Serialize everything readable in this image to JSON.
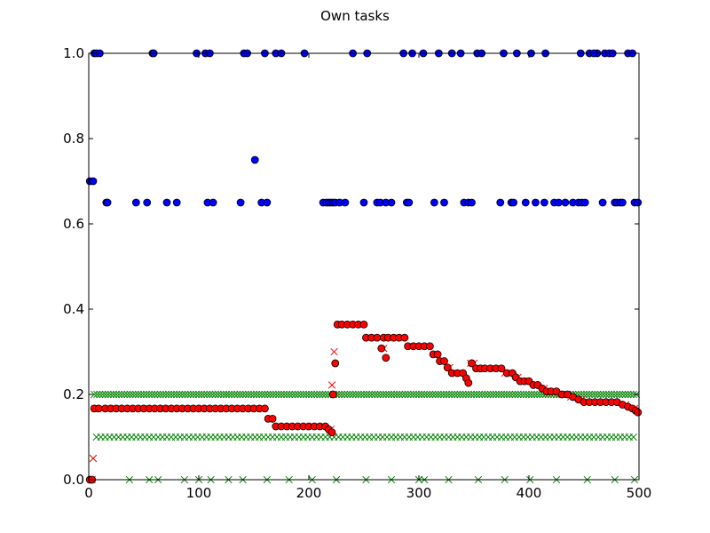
{
  "chart_data": {
    "type": "scatter",
    "title": "Own tasks",
    "xlabel": "",
    "ylabel": "",
    "xlim": [
      0,
      500
    ],
    "ylim": [
      0,
      1.0
    ],
    "x_ticks": [
      0,
      100,
      200,
      300,
      400,
      500
    ],
    "x_tick_labels": [
      "0",
      "100",
      "200",
      "300",
      "400",
      "500"
    ],
    "y_ticks": [
      0.0,
      0.2,
      0.4,
      0.6,
      0.8,
      1.0
    ],
    "y_tick_labels": [
      "0.0",
      "0.2",
      "0.4",
      "0.6",
      "0.8",
      "1.0"
    ],
    "grid": false,
    "legend": "none",
    "series": [
      {
        "marker": "circle",
        "color": "#0000ff",
        "points": [
          [
            1,
            0.7
          ],
          [
            4,
            0.7
          ],
          [
            5,
            1.0
          ],
          [
            7,
            1.0
          ],
          [
            10,
            1.0
          ],
          [
            16,
            0.65
          ],
          [
            17,
            0.65
          ],
          [
            43,
            0.65
          ],
          [
            53,
            0.65
          ],
          [
            58,
            1.0
          ],
          [
            59,
            1.0
          ],
          [
            71,
            0.65
          ],
          [
            80,
            0.65
          ],
          [
            98,
            1.0
          ],
          [
            106,
            1.0
          ],
          [
            108,
            0.65
          ],
          [
            110,
            1.0
          ],
          [
            113,
            0.65
          ],
          [
            138,
            0.65
          ],
          [
            141,
            1.0
          ],
          [
            144,
            1.0
          ],
          [
            151,
            0.75
          ],
          [
            157,
            0.65
          ],
          [
            160,
            1.0
          ],
          [
            162,
            0.65
          ],
          [
            170,
            1.0
          ],
          [
            175,
            1.0
          ],
          [
            196,
            1.0
          ],
          [
            213,
            0.65
          ],
          [
            216,
            0.65
          ],
          [
            218,
            0.65
          ],
          [
            220,
            0.65
          ],
          [
            222,
            0.65
          ],
          [
            224,
            0.65
          ],
          [
            228,
            0.65
          ],
          [
            233,
            0.65
          ],
          [
            240,
            1.0
          ],
          [
            250,
            0.65
          ],
          [
            253,
            1.0
          ],
          [
            262,
            0.65
          ],
          [
            265,
            0.65
          ],
          [
            270,
            0.65
          ],
          [
            275,
            0.65
          ],
          [
            286,
            1.0
          ],
          [
            289,
            0.65
          ],
          [
            291,
            0.65
          ],
          [
            294,
            1.0
          ],
          [
            304,
            1.0
          ],
          [
            314,
            0.65
          ],
          [
            318,
            1.0
          ],
          [
            323,
            0.65
          ],
          [
            330,
            1.0
          ],
          [
            338,
            1.0
          ],
          [
            341,
            0.65
          ],
          [
            345,
            0.65
          ],
          [
            348,
            0.65
          ],
          [
            353,
            1.0
          ],
          [
            357,
            1.0
          ],
          [
            374,
            0.65
          ],
          [
            377,
            1.0
          ],
          [
            384,
            0.65
          ],
          [
            386,
            0.65
          ],
          [
            389,
            1.0
          ],
          [
            397,
            0.65
          ],
          [
            402,
            1.0
          ],
          [
            406,
            0.65
          ],
          [
            414,
            0.65
          ],
          [
            415,
            1.0
          ],
          [
            423,
            0.65
          ],
          [
            427,
            0.65
          ],
          [
            433,
            0.65
          ],
          [
            440,
            0.65
          ],
          [
            445,
            0.65
          ],
          [
            448,
            0.65
          ],
          [
            451,
            0.65
          ],
          [
            455,
            1.0
          ],
          [
            462,
            1.0
          ],
          [
            467,
            0.65
          ],
          [
            469,
            1.0
          ],
          [
            473,
            1.0
          ],
          [
            476,
            1.0
          ],
          [
            478,
            0.65
          ],
          [
            480,
            0.65
          ],
          [
            483,
            0.65
          ],
          [
            485,
            0.65
          ],
          [
            490,
            1.0
          ],
          [
            494,
            1.0
          ],
          [
            496,
            0.65
          ],
          [
            499,
            0.65
          ],
          [
            447,
            1.0
          ],
          [
            459,
            1.0
          ]
        ]
      },
      {
        "marker": "circle",
        "color": "#ff0000",
        "points": [
          [
            1,
            0.0
          ],
          [
            3,
            0.0
          ],
          [
            5,
            0.167
          ],
          [
            9,
            0.167
          ],
          [
            15,
            0.167
          ],
          [
            20,
            0.167
          ],
          [
            25,
            0.167
          ],
          [
            30,
            0.167
          ],
          [
            35,
            0.167
          ],
          [
            40,
            0.167
          ],
          [
            45,
            0.167
          ],
          [
            50,
            0.167
          ],
          [
            55,
            0.167
          ],
          [
            60,
            0.167
          ],
          [
            65,
            0.167
          ],
          [
            70,
            0.167
          ],
          [
            75,
            0.167
          ],
          [
            80,
            0.167
          ],
          [
            85,
            0.167
          ],
          [
            90,
            0.167
          ],
          [
            95,
            0.167
          ],
          [
            100,
            0.167
          ],
          [
            105,
            0.167
          ],
          [
            110,
            0.167
          ],
          [
            115,
            0.167
          ],
          [
            120,
            0.167
          ],
          [
            125,
            0.167
          ],
          [
            130,
            0.167
          ],
          [
            135,
            0.167
          ],
          [
            140,
            0.167
          ],
          [
            145,
            0.167
          ],
          [
            150,
            0.167
          ],
          [
            155,
            0.167
          ],
          [
            160,
            0.167
          ],
          [
            163,
            0.143
          ],
          [
            167,
            0.143
          ],
          [
            170,
            0.125
          ],
          [
            175,
            0.125
          ],
          [
            180,
            0.125
          ],
          [
            185,
            0.125
          ],
          [
            190,
            0.125
          ],
          [
            195,
            0.125
          ],
          [
            200,
            0.125
          ],
          [
            205,
            0.125
          ],
          [
            210,
            0.125
          ],
          [
            215,
            0.125
          ],
          [
            218,
            0.118
          ],
          [
            221,
            0.111
          ],
          [
            222,
            0.2
          ],
          [
            224,
            0.273
          ],
          [
            226,
            0.364
          ],
          [
            230,
            0.364
          ],
          [
            235,
            0.364
          ],
          [
            240,
            0.364
          ],
          [
            245,
            0.364
          ],
          [
            250,
            0.364
          ],
          [
            252,
            0.333
          ],
          [
            257,
            0.333
          ],
          [
            262,
            0.333
          ],
          [
            266,
            0.308
          ],
          [
            268,
            0.333
          ],
          [
            270,
            0.286
          ],
          [
            272,
            0.333
          ],
          [
            277,
            0.333
          ],
          [
            282,
            0.333
          ],
          [
            287,
            0.333
          ],
          [
            290,
            0.313
          ],
          [
            295,
            0.313
          ],
          [
            300,
            0.313
          ],
          [
            305,
            0.313
          ],
          [
            310,
            0.313
          ],
          [
            313,
            0.294
          ],
          [
            317,
            0.294
          ],
          [
            319,
            0.278
          ],
          [
            323,
            0.278
          ],
          [
            326,
            0.263
          ],
          [
            330,
            0.25
          ],
          [
            335,
            0.25
          ],
          [
            340,
            0.25
          ],
          [
            343,
            0.238
          ],
          [
            345,
            0.227
          ],
          [
            348,
            0.273
          ],
          [
            352,
            0.261
          ],
          [
            356,
            0.261
          ],
          [
            360,
            0.261
          ],
          [
            365,
            0.261
          ],
          [
            370,
            0.261
          ],
          [
            375,
            0.261
          ],
          [
            380,
            0.25
          ],
          [
            385,
            0.25
          ],
          [
            388,
            0.24
          ],
          [
            392,
            0.231
          ],
          [
            396,
            0.231
          ],
          [
            400,
            0.231
          ],
          [
            404,
            0.222
          ],
          [
            408,
            0.222
          ],
          [
            412,
            0.214
          ],
          [
            416,
            0.207
          ],
          [
            420,
            0.207
          ],
          [
            425,
            0.207
          ],
          [
            430,
            0.2
          ],
          [
            435,
            0.2
          ],
          [
            440,
            0.194
          ],
          [
            445,
            0.188
          ],
          [
            450,
            0.182
          ],
          [
            455,
            0.182
          ],
          [
            460,
            0.182
          ],
          [
            465,
            0.182
          ],
          [
            470,
            0.182
          ],
          [
            475,
            0.182
          ],
          [
            480,
            0.182
          ],
          [
            485,
            0.176
          ],
          [
            490,
            0.171
          ],
          [
            494,
            0.167
          ],
          [
            497,
            0.162
          ],
          [
            499,
            0.158
          ]
        ]
      },
      {
        "marker": "x",
        "color": "#ff0000",
        "points": [
          [
            4,
            0.05
          ],
          [
            6,
            0.167
          ],
          [
            12,
            0.167
          ],
          [
            22,
            0.167
          ],
          [
            32,
            0.167
          ],
          [
            42,
            0.167
          ],
          [
            52,
            0.167
          ],
          [
            62,
            0.167
          ],
          [
            72,
            0.167
          ],
          [
            82,
            0.167
          ],
          [
            92,
            0.167
          ],
          [
            102,
            0.167
          ],
          [
            112,
            0.167
          ],
          [
            122,
            0.167
          ],
          [
            132,
            0.167
          ],
          [
            142,
            0.167
          ],
          [
            152,
            0.167
          ],
          [
            165,
            0.143
          ],
          [
            172,
            0.125
          ],
          [
            182,
            0.125
          ],
          [
            192,
            0.125
          ],
          [
            202,
            0.125
          ],
          [
            212,
            0.125
          ],
          [
            220,
            0.118
          ],
          [
            221,
            0.222
          ],
          [
            223,
            0.3
          ],
          [
            227,
            0.364
          ],
          [
            237,
            0.364
          ],
          [
            247,
            0.364
          ],
          [
            255,
            0.333
          ],
          [
            265,
            0.333
          ],
          [
            268,
            0.308
          ],
          [
            275,
            0.333
          ],
          [
            285,
            0.333
          ],
          [
            293,
            0.313
          ],
          [
            303,
            0.313
          ],
          [
            315,
            0.294
          ],
          [
            321,
            0.278
          ],
          [
            328,
            0.263
          ],
          [
            338,
            0.25
          ],
          [
            347,
            0.273
          ],
          [
            350,
            0.273
          ],
          [
            358,
            0.261
          ],
          [
            368,
            0.261
          ],
          [
            378,
            0.25
          ],
          [
            383,
            0.25
          ],
          [
            390,
            0.24
          ],
          [
            398,
            0.231
          ],
          [
            406,
            0.222
          ],
          [
            414,
            0.214
          ],
          [
            418,
            0.207
          ],
          [
            428,
            0.2
          ],
          [
            438,
            0.194
          ],
          [
            448,
            0.188
          ],
          [
            458,
            0.182
          ],
          [
            468,
            0.182
          ],
          [
            478,
            0.182
          ],
          [
            488,
            0.176
          ],
          [
            496,
            0.167
          ]
        ]
      },
      {
        "marker": "x",
        "color": "#008000",
        "bands": [
          {
            "y": 0.2,
            "from": 5,
            "to": 499,
            "step": 2.5
          },
          {
            "y": 0.1,
            "from": 7,
            "to": 497,
            "step": 4
          }
        ],
        "points": [
          [
            4,
            0.05
          ],
          [
            3,
            0.0
          ],
          [
            37,
            0.0
          ],
          [
            55,
            0.0
          ],
          [
            63,
            0.0
          ],
          [
            87,
            0.0
          ],
          [
            100,
            0.0
          ],
          [
            111,
            0.0
          ],
          [
            127,
            0.0
          ],
          [
            140,
            0.0
          ],
          [
            162,
            0.0
          ],
          [
            182,
            0.0
          ],
          [
            203,
            0.0
          ],
          [
            225,
            0.0
          ],
          [
            252,
            0.0
          ],
          [
            275,
            0.0
          ],
          [
            300,
            0.0
          ],
          [
            305,
            0.0
          ],
          [
            327,
            0.0
          ],
          [
            354,
            0.0
          ],
          [
            378,
            0.0
          ],
          [
            401,
            0.0
          ],
          [
            425,
            0.0
          ],
          [
            453,
            0.0
          ],
          [
            478,
            0.0
          ],
          [
            496,
            0.0
          ]
        ]
      }
    ]
  }
}
